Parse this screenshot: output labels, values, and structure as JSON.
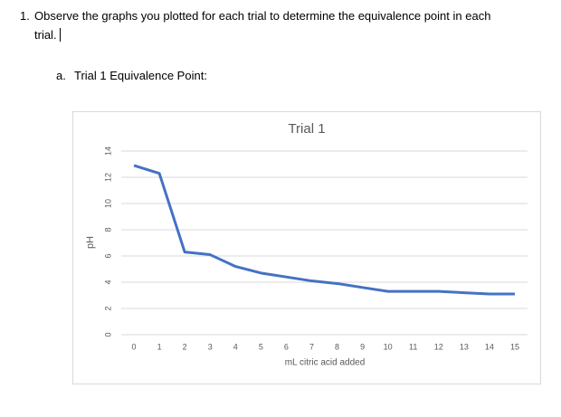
{
  "question": {
    "number": "1.",
    "text": "Observe the graphs you plotted for each trial to determine the equivalence point in each trial."
  },
  "subquestion": {
    "number": "a.",
    "text": "Trial 1 Equivalence Point:"
  },
  "chart_data": {
    "type": "line",
    "title": "Trial 1",
    "x_label": "mL citric acid added",
    "y_label": "pH",
    "categories": [
      "0",
      "1",
      "2",
      "3",
      "4",
      "5",
      "6",
      "7",
      "8",
      "9",
      "10",
      "11",
      "12",
      "13",
      "14",
      "15"
    ],
    "series": [
      {
        "name": "Trial 1",
        "color": "#4472c4",
        "values": [
          12.9,
          12.3,
          6.3,
          6.1,
          5.2,
          4.7,
          4.4,
          4.1,
          3.9,
          3.6,
          3.3,
          3.3,
          3.3,
          3.2,
          3.1,
          3.1
        ]
      }
    ],
    "ylim": [
      0,
      14
    ],
    "yticks": [
      0,
      2,
      4,
      6,
      8,
      10,
      12,
      14
    ],
    "grid": true
  }
}
